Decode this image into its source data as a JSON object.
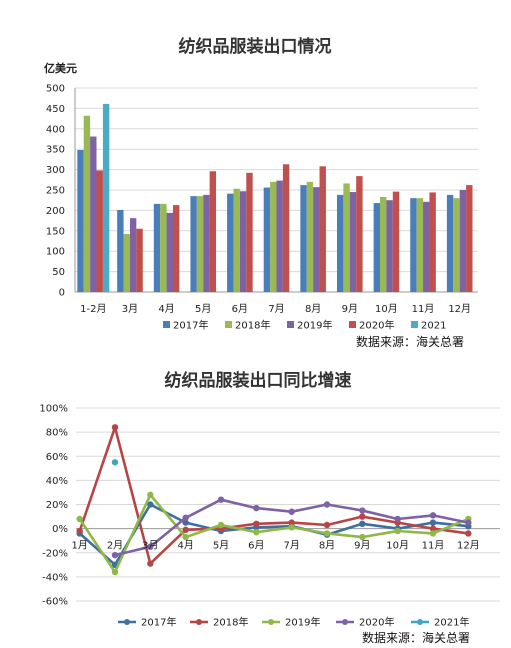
{
  "chart_data": [
    {
      "type": "bar",
      "title": "纺织品服装出口情况",
      "ylabel": "亿美元",
      "ylim": [
        0,
        500
      ],
      "yticks": [
        0,
        50,
        100,
        150,
        200,
        250,
        300,
        350,
        400,
        450,
        500
      ],
      "grid": true,
      "legend": "bottom",
      "source": "数据来源：海关总署",
      "categories": [
        "1-2月",
        "3月",
        "4月",
        "5月",
        "6月",
        "7月",
        "8月",
        "9月",
        "10月",
        "11月",
        "12月"
      ],
      "series": [
        {
          "name": "2017年",
          "color": "#4a7ebb",
          "values": [
            348,
            201,
            216,
            235,
            241,
            256,
            262,
            238,
            218,
            230,
            238
          ]
        },
        {
          "name": "2018年",
          "color": "#98b954",
          "values": [
            432,
            142,
            216,
            235,
            253,
            270,
            270,
            266,
            233,
            230,
            230
          ]
        },
        {
          "name": "2019年",
          "color": "#7e62a1",
          "values": [
            381,
            181,
            194,
            238,
            247,
            273,
            257,
            245,
            225,
            221,
            250
          ]
        },
        {
          "name": "2020年",
          "color": "#c0504d",
          "values": [
            298,
            155,
            213,
            296,
            292,
            313,
            308,
            284,
            246,
            244,
            262
          ]
        },
        {
          "name": "2021",
          "color": "#4bacc6",
          "values": [
            461,
            null,
            null,
            null,
            null,
            null,
            null,
            null,
            null,
            null,
            null
          ]
        }
      ]
    },
    {
      "type": "line",
      "title": "纺织品服装出口同比增速",
      "ylim": [
        -60,
        100
      ],
      "yticks": [
        "100%",
        "80%",
        "60%",
        "40%",
        "20%",
        "0%",
        "-20%",
        "-40%",
        "-60%"
      ],
      "ytick_values": [
        100,
        80,
        60,
        40,
        20,
        0,
        -20,
        -40,
        -60
      ],
      "grid": true,
      "legend": "bottom",
      "source": "数据来源：海关总署",
      "categories": [
        "1月",
        "2月",
        "3月",
        "4月",
        "5月",
        "6月",
        "7月",
        "8月",
        "9月",
        "10月",
        "11月",
        "12月"
      ],
      "series": [
        {
          "name": "2017年",
          "color": "#3f6f9f",
          "values": [
            -4,
            -30,
            20,
            5,
            -2,
            1,
            2,
            -5,
            4,
            0,
            5,
            2
          ]
        },
        {
          "name": "2018年",
          "color": "#b84545",
          "values": [
            -2,
            84,
            -29,
            -1,
            0,
            4,
            5,
            3,
            10,
            5,
            0,
            -4
          ]
        },
        {
          "name": "2019年",
          "color": "#8fb84a",
          "values": [
            8,
            -36,
            28,
            -7,
            3,
            -3,
            1,
            -4,
            -7,
            -2,
            -4,
            8
          ]
        },
        {
          "name": "2020年",
          "color": "#7e62a1",
          "values": [
            null,
            -22,
            -15,
            9,
            24,
            17,
            14,
            20,
            15,
            8,
            11,
            5
          ]
        },
        {
          "name": "2021年",
          "color": "#3fa6c0",
          "values": [
            null,
            55,
            null,
            null,
            null,
            null,
            null,
            null,
            null,
            null,
            null,
            null
          ]
        }
      ]
    }
  ]
}
